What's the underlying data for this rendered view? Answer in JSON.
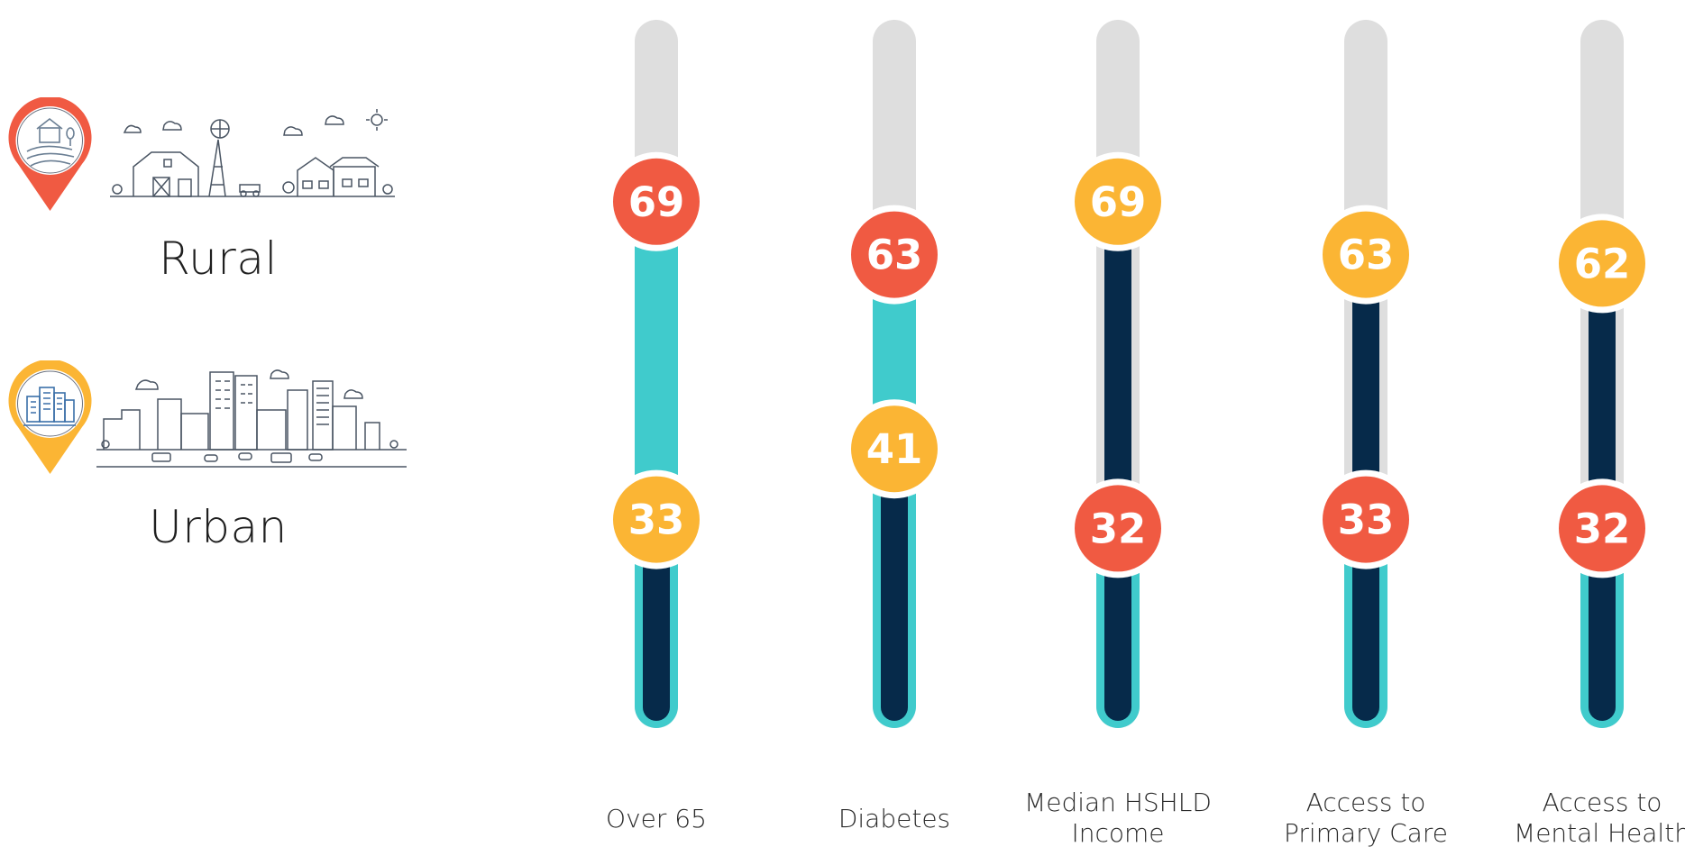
{
  "legend": {
    "rural_label": "Rural",
    "urban_label": "Urban",
    "rural_icon": "rural-farm-pin-icon",
    "urban_icon": "urban-city-pin-icon"
  },
  "colors": {
    "rural": "#F05A42",
    "urban": "#FBB534",
    "track": "#DEDEDE",
    "teal": "#40CBCC",
    "navy": "#062A4A"
  },
  "chart_data": {
    "type": "slider-comparison",
    "ylim": [
      0,
      100
    ],
    "categories": [
      "Over 65",
      "Diabetes",
      "Median HSHLD Income",
      "Access to Primary Care",
      "Access to Mental Health"
    ],
    "category_lines": [
      [
        "Over 65"
      ],
      [
        "Diabetes"
      ],
      [
        "Median HSHLD",
        "Income"
      ],
      [
        "Access to",
        "Primary Care"
      ],
      [
        "Access to",
        "Mental Health"
      ]
    ],
    "series": [
      {
        "name": "Rural",
        "color": "#F05A42",
        "values": [
          69,
          63,
          32,
          33,
          32
        ]
      },
      {
        "name": "Urban",
        "color": "#FBB534",
        "values": [
          33,
          41,
          69,
          63,
          62
        ]
      }
    ]
  }
}
